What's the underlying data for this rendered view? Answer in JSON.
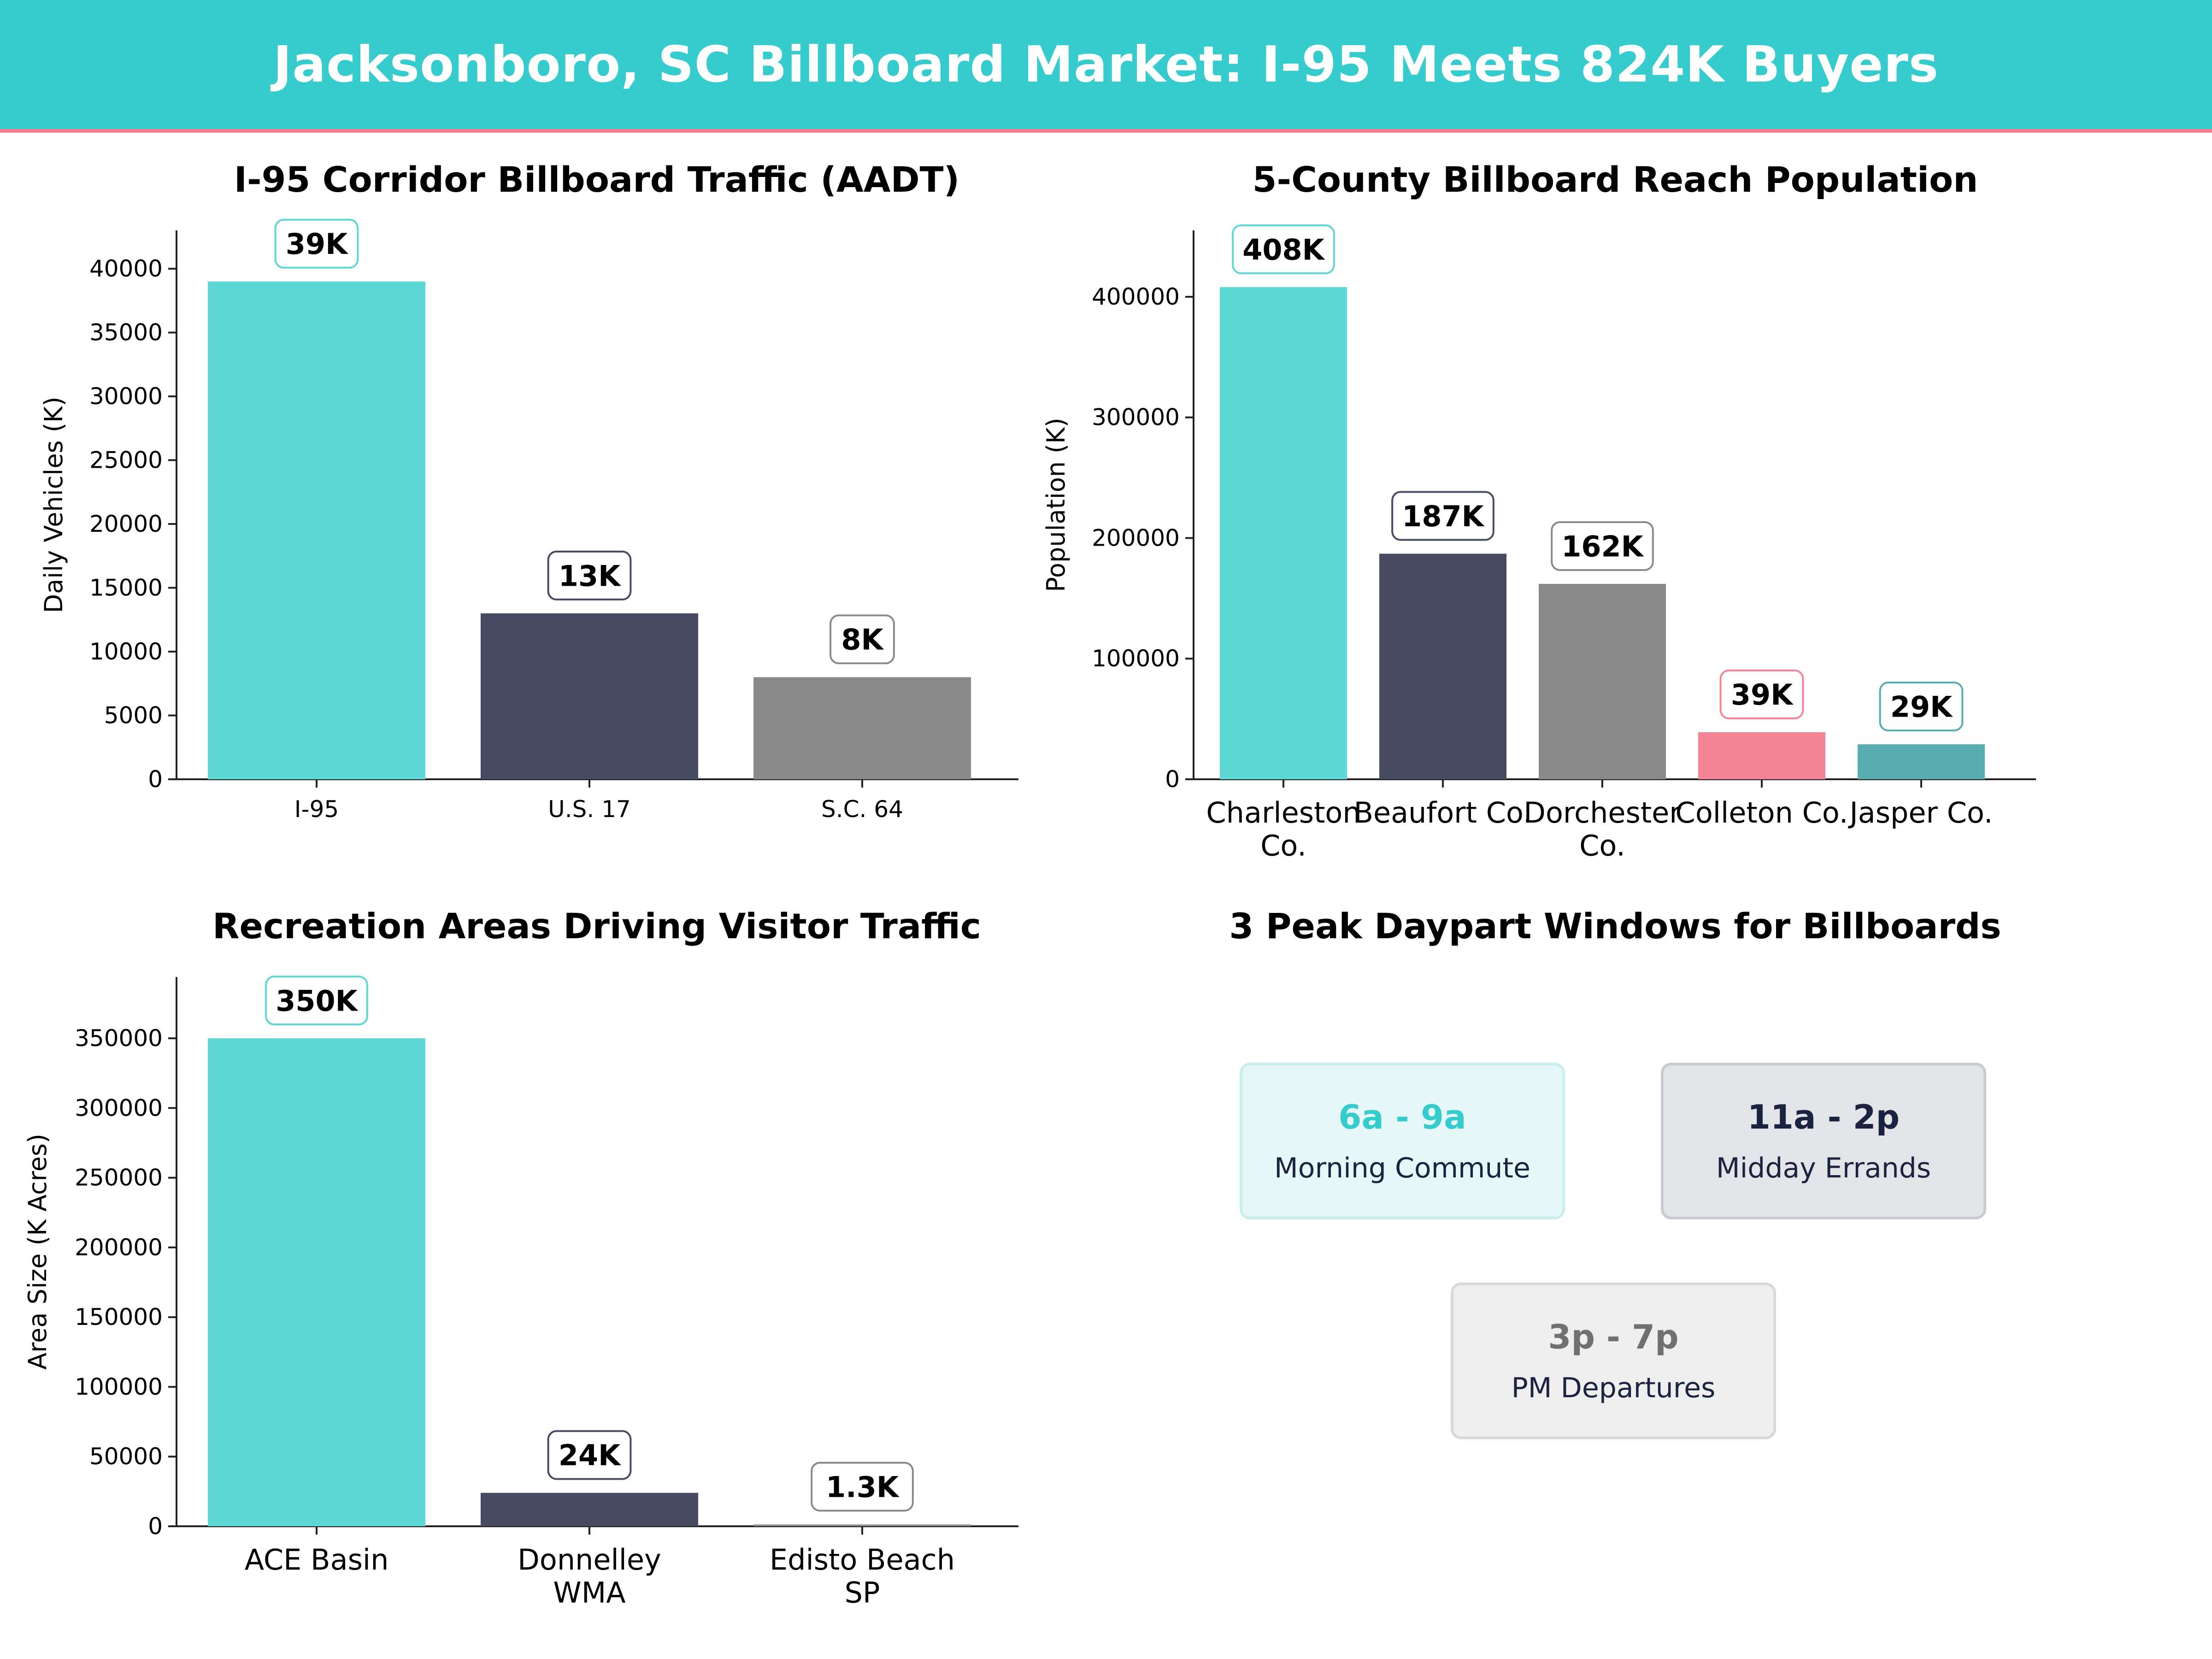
{
  "header": {
    "title": "Jacksonboro, SC Billboard Market: I-95 Meets 824K Buyers",
    "background": "#36cbcc",
    "accent_line": "#f27d8e"
  },
  "chart_data": [
    {
      "id": "traffic",
      "type": "bar",
      "title": "I-95 Corridor Billboard Traffic (AADT)",
      "xlabel": "",
      "ylabel": "Daily Vehicles (K)",
      "categories": [
        "I-95",
        "U.S. 17",
        "S.C. 64"
      ],
      "values": [
        39000,
        13000,
        8000
      ],
      "labels": [
        "39K",
        "13K",
        "8K"
      ],
      "colors": [
        "#5dd8d5",
        "#474b62",
        "#8a8a8a"
      ],
      "ylim": [
        0,
        43000
      ],
      "yticks": [
        0,
        5000,
        10000,
        15000,
        20000,
        25000,
        30000,
        35000,
        40000
      ],
      "grid": false
    },
    {
      "id": "population",
      "type": "bar",
      "title": "5-County Billboard Reach Population",
      "xlabel": "",
      "ylabel": "Population (K)",
      "categories": [
        [
          "Charleston",
          "Co."
        ],
        [
          "Beaufort Co."
        ],
        [
          "Dorchester",
          "Co."
        ],
        [
          "Colleton Co."
        ],
        [
          "Jasper Co."
        ]
      ],
      "values": [
        408000,
        187000,
        162000,
        39000,
        29000
      ],
      "labels": [
        "408K",
        "187K",
        "162K",
        "39K",
        "29K"
      ],
      "colors": [
        "#5dd8d5",
        "#474b62",
        "#8a8a8a",
        "#f48396",
        "#5aadae"
      ],
      "ylim": [
        0,
        455000
      ],
      "yticks": [
        0,
        100000,
        200000,
        300000,
        400000
      ],
      "grid": false
    },
    {
      "id": "recreation",
      "type": "bar",
      "title": "Recreation Areas Driving Visitor Traffic",
      "xlabel": "",
      "ylabel": "Area Size (K Acres)",
      "categories": [
        [
          "ACE Basin"
        ],
        [
          "Donnelley",
          "WMA"
        ],
        [
          "Edisto Beach",
          "SP"
        ]
      ],
      "values": [
        350000,
        24000,
        1300
      ],
      "labels": [
        "350K",
        "24K",
        "1.3K"
      ],
      "colors": [
        "#5dd8d5",
        "#474b62",
        "#8a8a8a"
      ],
      "ylim": [
        0,
        394000
      ],
      "yticks": [
        0,
        50000,
        100000,
        150000,
        200000,
        250000,
        300000,
        350000
      ],
      "grid": false
    }
  ],
  "dayparts": {
    "title": "3 Peak Daypart Windows for Billboards",
    "windows": [
      {
        "time": "6a - 9a",
        "label": "Morning Commute",
        "color": "#36cbcc",
        "bg": "#e6f7f7",
        "border": "#c8eeee"
      },
      {
        "time": "11a - 2p",
        "label": "Midday Errands",
        "color": "#1c2340",
        "bg": "#e3e4e8",
        "border": "#c9cbd2"
      },
      {
        "time": "3p - 7p",
        "label": "PM Departures",
        "color": "#707070",
        "bg": "#eeeeee",
        "border": "#d9d9d9"
      }
    ]
  }
}
